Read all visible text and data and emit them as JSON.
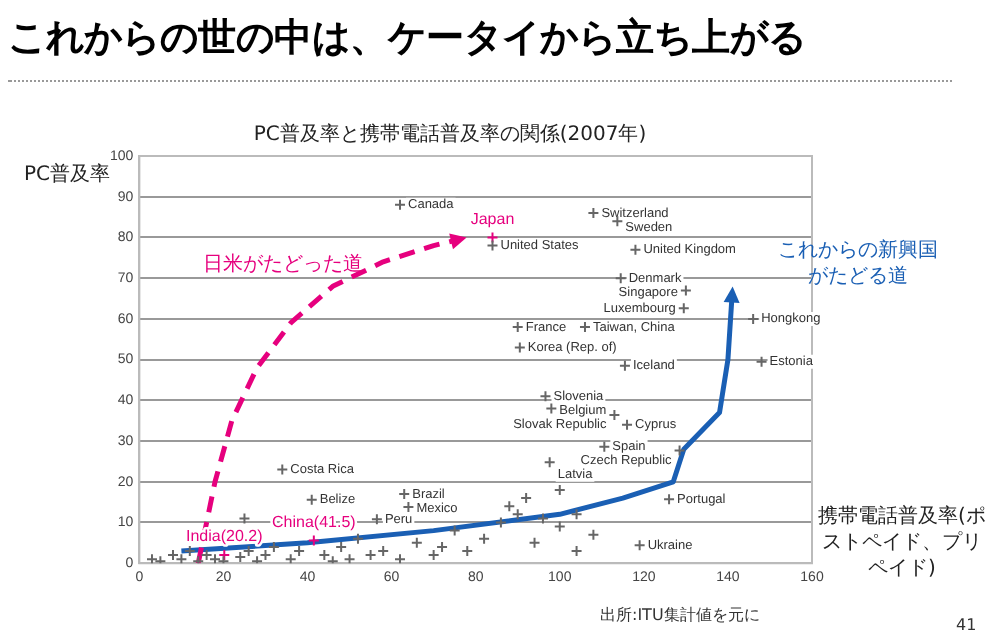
{
  "chart_data": {
    "type": "scatter",
    "title": "これからの世の中は、ケータイから立ち上がる",
    "subtitle": "PC普及率と携帯電話普及率の関係(2007年)",
    "xlabel": "携帯電話普及率(ポストペイド、プリペイド)",
    "ylabel": "PC普及率",
    "xlim": [
      0,
      160
    ],
    "xticks": [
      0,
      20,
      40,
      60,
      80,
      100,
      120,
      140,
      160
    ],
    "ylim": [
      0,
      100
    ],
    "yticks": [
      0,
      10,
      20,
      30,
      40,
      50,
      60,
      70,
      80,
      90,
      100
    ],
    "grid": "y",
    "legend": false,
    "marker": "cross",
    "series": [
      {
        "color": "#666666",
        "x": [
          62,
          84,
          108,
          113.7,
          118,
          114.5,
          130,
          129.5,
          146,
          90,
          106,
          90.5,
          115.5,
          148,
          96.6,
          98,
          113,
          116,
          110.6,
          128.5,
          97.6,
          126,
          119,
          34,
          41,
          63,
          64,
          56.5,
          3,
          5,
          8,
          10,
          12,
          14,
          16,
          18,
          20,
          24,
          26,
          28,
          30,
          32,
          36,
          38,
          44,
          46,
          48,
          50,
          52,
          55,
          58,
          62,
          66,
          70,
          72,
          75,
          78,
          82,
          86,
          90,
          94,
          100,
          104,
          108,
          88,
          92,
          96,
          100,
          104,
          25
        ],
        "values": [
          88,
          78,
          86,
          84,
          77,
          70,
          67,
          62.6,
          60,
          58,
          58,
          53,
          48.5,
          49.5,
          41,
          38,
          36.4,
          34,
          28.6,
          27.7,
          24.8,
          15.7,
          4.4,
          23,
          15.6,
          17,
          13.8,
          10.8,
          1,
          0.5,
          2,
          1,
          3,
          0.5,
          2,
          1,
          0.5,
          1.5,
          3,
          0.5,
          2,
          4,
          1,
          3,
          2,
          0.5,
          4,
          1,
          6,
          2,
          3,
          1,
          5,
          2,
          4,
          8,
          3,
          6,
          10,
          12,
          5,
          9,
          3,
          7,
          14,
          16,
          11,
          18,
          12,
          11
        ],
        "value_labels": [
          "Canada",
          "United States",
          "Switzerland",
          "Sweden",
          "United Kingdom",
          "Denmark",
          "Singapore",
          "Luxembourg",
          "Hongkong",
          "France",
          "Taiwan, China",
          "Korea (Rep. of)",
          "Iceland",
          "Estonia",
          "Slovenia",
          "Belgium",
          "Slovak Republic",
          "Cyprus",
          "Spain",
          "Czech Republic",
          "Latvia",
          "Portugal",
          "Ukraine",
          "Costa Rica",
          "Belize",
          "Brazil",
          "Mexico",
          "Peru",
          null,
          null,
          null,
          null,
          null,
          null,
          null,
          null,
          null,
          null,
          null,
          null,
          null,
          null,
          null,
          null,
          null,
          null,
          null,
          null,
          null,
          null,
          null,
          null,
          null,
          null,
          null,
          null,
          null,
          null,
          null,
          null,
          null,
          null,
          null,
          null,
          null,
          null,
          null,
          null,
          null,
          null
        ]
      },
      {
        "color": "#e6007e",
        "x": [
          84,
          41.5,
          20.2
        ],
        "values": [
          80,
          5.6,
          2
        ],
        "value_labels": [
          "Japan",
          "China(41.5)",
          "India(20.2)"
        ]
      },
      {
        "type": "line",
        "name": "日米がたどった道",
        "color": "#e6007e",
        "line_style": "dashed",
        "marker": "none",
        "x": [
          14,
          18,
          22,
          28,
          36,
          46,
          58,
          70,
          76
        ],
        "values": [
          0,
          20,
          35,
          48,
          59,
          68,
          74,
          78,
          79.5
        ]
      },
      {
        "type": "line",
        "name": "これからの新興国がたどる道",
        "color": "#1a5fb4",
        "marker": "none",
        "x": [
          10,
          40,
          70,
          100,
          115,
          127,
          129.5,
          138,
          140,
          141
        ],
        "values": [
          3,
          5,
          8,
          12,
          16,
          20,
          28,
          37,
          50,
          66
        ]
      }
    ],
    "annotations": [
      "出所:ITU集計値を元に",
      "41"
    ]
  }
}
